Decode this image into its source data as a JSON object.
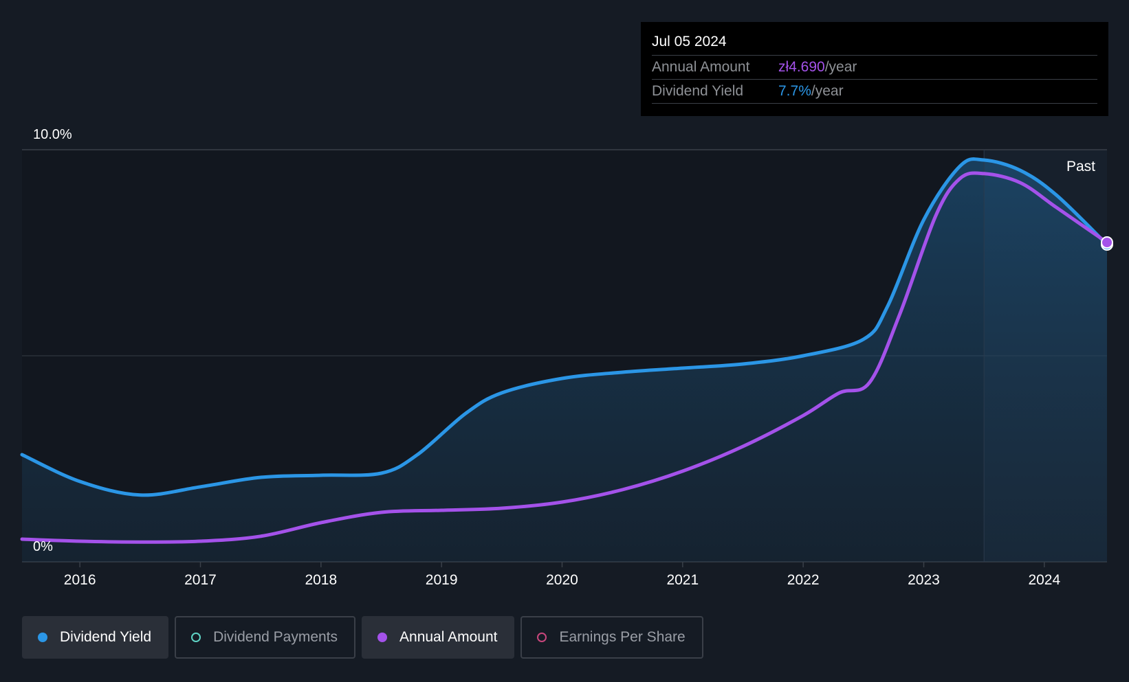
{
  "colors": {
    "background": "#151b24",
    "dividend_yield": "#2b96e6",
    "annual_amount": "#a452ea",
    "dividend_payments": "#5fd4c5",
    "earnings_per_share": "#c8467c"
  },
  "tooltip": {
    "date": "Jul 05 2024",
    "rows": [
      {
        "label": "Annual Amount",
        "value": "zł4.690",
        "unit": "/year"
      },
      {
        "label": "Dividend Yield",
        "value": "7.7%",
        "unit": "/year"
      }
    ]
  },
  "past_label": "Past",
  "legend": [
    {
      "label": "Dividend Yield",
      "active": true,
      "icon": "filled-dot"
    },
    {
      "label": "Dividend Payments",
      "active": false,
      "icon": "ring-dot"
    },
    {
      "label": "Annual Amount",
      "active": true,
      "icon": "filled-dot"
    },
    {
      "label": "Earnings Per Share",
      "active": false,
      "icon": "ring-dot"
    }
  ],
  "chart_data": {
    "type": "line",
    "ylim": [
      0,
      10
    ],
    "y_tick_labels": [
      "0%",
      "10.0%"
    ],
    "x_tick_labels": [
      "2016",
      "2017",
      "2018",
      "2019",
      "2020",
      "2021",
      "2022",
      "2023",
      "2024"
    ],
    "xlim": [
      2015.52,
      2024.52
    ],
    "past_region_start": 2023.5,
    "grid": true,
    "series": [
      {
        "name": "Dividend Yield",
        "unit": "%",
        "fill": true,
        "points": [
          [
            2015.52,
            2.6
          ],
          [
            2016.0,
            1.95
          ],
          [
            2016.5,
            1.62
          ],
          [
            2017.0,
            1.82
          ],
          [
            2017.5,
            2.05
          ],
          [
            2018.0,
            2.1
          ],
          [
            2018.5,
            2.15
          ],
          [
            2018.8,
            2.6
          ],
          [
            2019.2,
            3.6
          ],
          [
            2019.5,
            4.1
          ],
          [
            2020.0,
            4.45
          ],
          [
            2020.5,
            4.6
          ],
          [
            2021.0,
            4.7
          ],
          [
            2021.5,
            4.8
          ],
          [
            2022.0,
            5.0
          ],
          [
            2022.5,
            5.4
          ],
          [
            2022.7,
            6.2
          ],
          [
            2023.0,
            8.3
          ],
          [
            2023.3,
            9.6
          ],
          [
            2023.5,
            9.75
          ],
          [
            2023.8,
            9.5
          ],
          [
            2024.1,
            8.9
          ],
          [
            2024.52,
            7.7
          ]
        ]
      },
      {
        "name": "Annual Amount",
        "unit": "%",
        "fill": false,
        "points": [
          [
            2015.52,
            0.55
          ],
          [
            2016.0,
            0.5
          ],
          [
            2016.5,
            0.48
          ],
          [
            2017.0,
            0.5
          ],
          [
            2017.5,
            0.62
          ],
          [
            2018.0,
            0.95
          ],
          [
            2018.5,
            1.2
          ],
          [
            2019.0,
            1.25
          ],
          [
            2019.5,
            1.3
          ],
          [
            2020.0,
            1.45
          ],
          [
            2020.5,
            1.75
          ],
          [
            2021.0,
            2.2
          ],
          [
            2021.5,
            2.8
          ],
          [
            2022.0,
            3.55
          ],
          [
            2022.3,
            4.1
          ],
          [
            2022.55,
            4.35
          ],
          [
            2022.8,
            6.0
          ],
          [
            2023.1,
            8.4
          ],
          [
            2023.3,
            9.3
          ],
          [
            2023.5,
            9.42
          ],
          [
            2023.8,
            9.2
          ],
          [
            2024.1,
            8.6
          ],
          [
            2024.52,
            7.75
          ]
        ]
      }
    ]
  }
}
